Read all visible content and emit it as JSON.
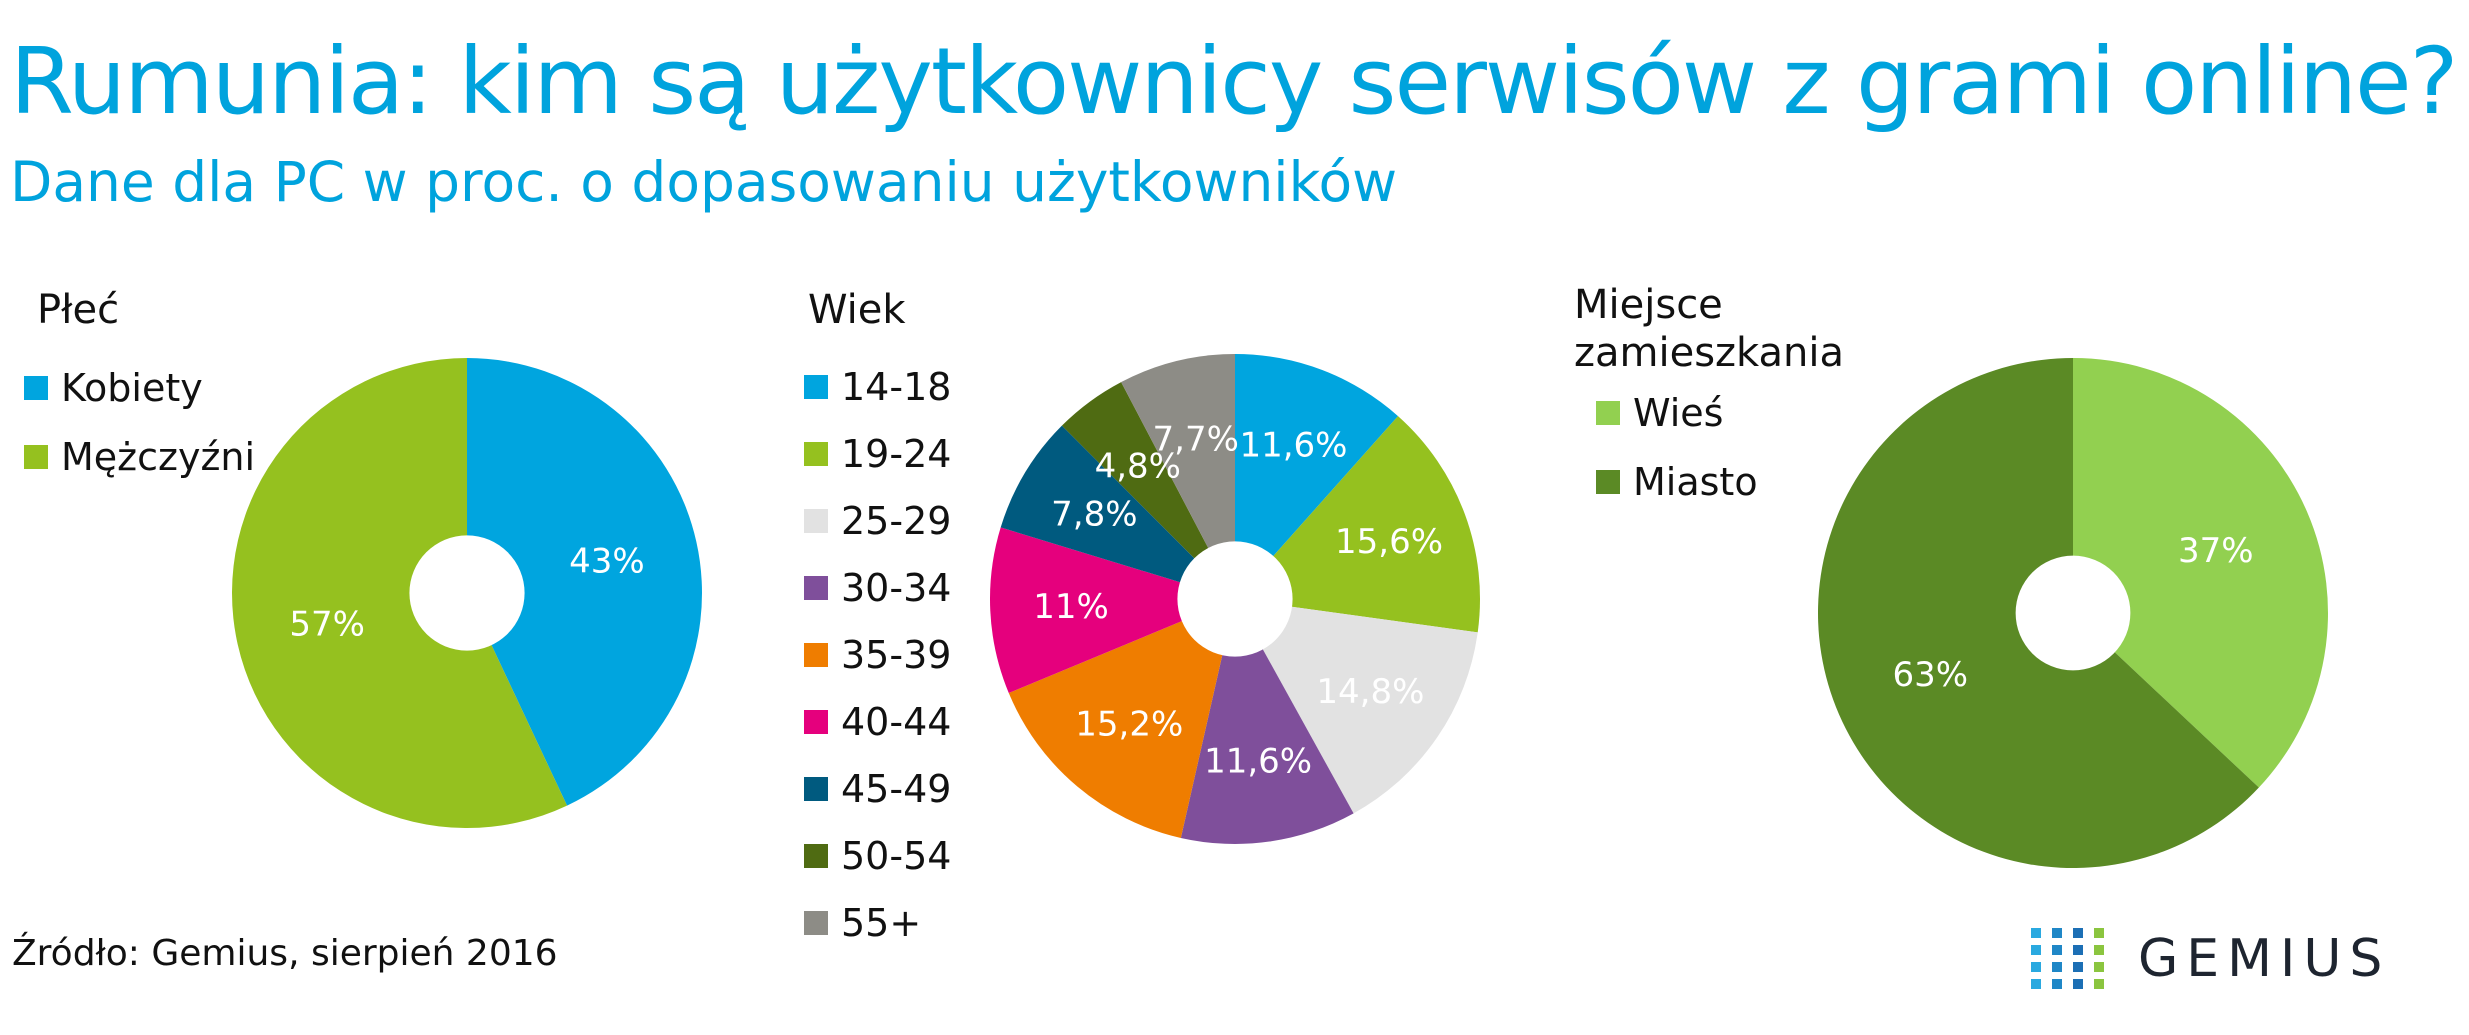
{
  "title": "Rumunia: kim są użytkownicy serwisów z grami online?",
  "subtitle": "Dane dla PC w proc. o dopasowaniu użytkowników",
  "source": "Źródło: Gemius, sierpień 2016",
  "logo": {
    "text": "GEMIUS",
    "icon": "gemius-dots-icon"
  },
  "chart_data": [
    {
      "type": "pie",
      "title": "Płeć",
      "donut": true,
      "legend_position": "top-left",
      "categories": [
        "Kobiety",
        "Mężczyźni"
      ],
      "values": [
        43,
        57
      ],
      "labels": [
        "43%",
        "57%"
      ],
      "colors": [
        "#00a5df",
        "#95c11f"
      ]
    },
    {
      "type": "pie",
      "title": "Wiek",
      "donut": true,
      "legend_position": "left",
      "categories": [
        "14-18",
        "19-24",
        "25-29",
        "30-34",
        "35-39",
        "40-44",
        "45-49",
        "50-54",
        "55+"
      ],
      "values": [
        11.6,
        15.6,
        14.8,
        11.6,
        15.2,
        11,
        7.8,
        4.8,
        7.7
      ],
      "labels": [
        "11,6%",
        "15,6%",
        "14,8%",
        "11,6%",
        "15,2%",
        "11%",
        "7,8%",
        "4,8%",
        "7,7%"
      ],
      "colors": [
        "#00a5df",
        "#95c11f",
        "#e2e2e2",
        "#7f4f9b",
        "#ef7d00",
        "#e5007d",
        "#005a7f",
        "#4f6b12",
        "#8d8c86"
      ]
    },
    {
      "type": "pie",
      "title": "Miejsce zamieszkania",
      "donut": true,
      "legend_position": "top-left",
      "categories": [
        "Wieś",
        "Miasto"
      ],
      "values": [
        37,
        63
      ],
      "labels": [
        "37%",
        "63%"
      ],
      "colors": [
        "#92d050",
        "#5b8a25"
      ]
    }
  ]
}
